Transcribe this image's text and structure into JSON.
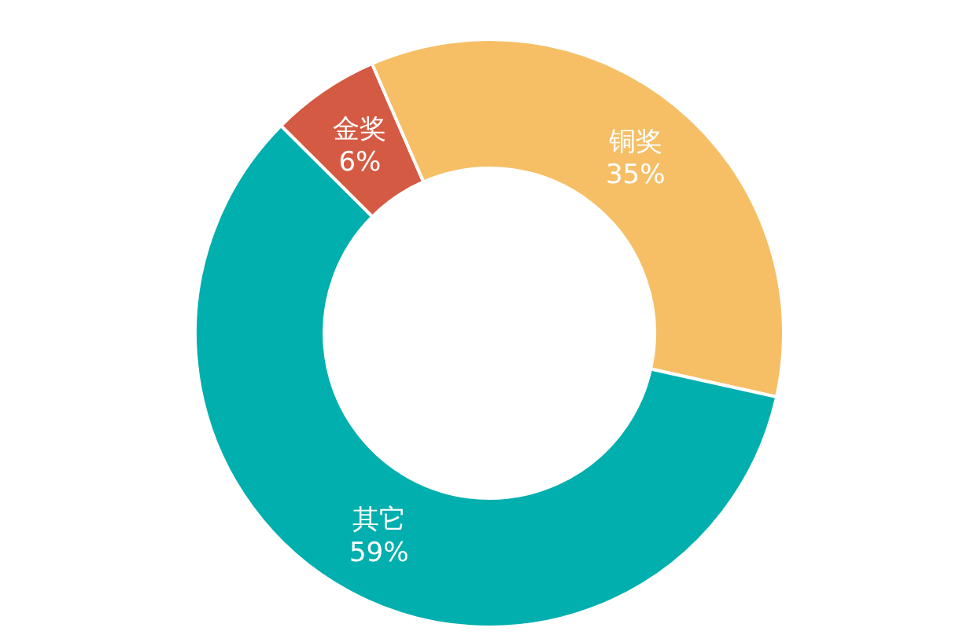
{
  "chart_data": {
    "type": "donut",
    "categories": [
      "金奖",
      "铜奖",
      "其它"
    ],
    "values": [
      6,
      35,
      59
    ],
    "colors": [
      "#d55a43",
      "#f6bf66",
      "#00afae"
    ],
    "value_labels": [
      "6%",
      "35%",
      "59%"
    ]
  }
}
